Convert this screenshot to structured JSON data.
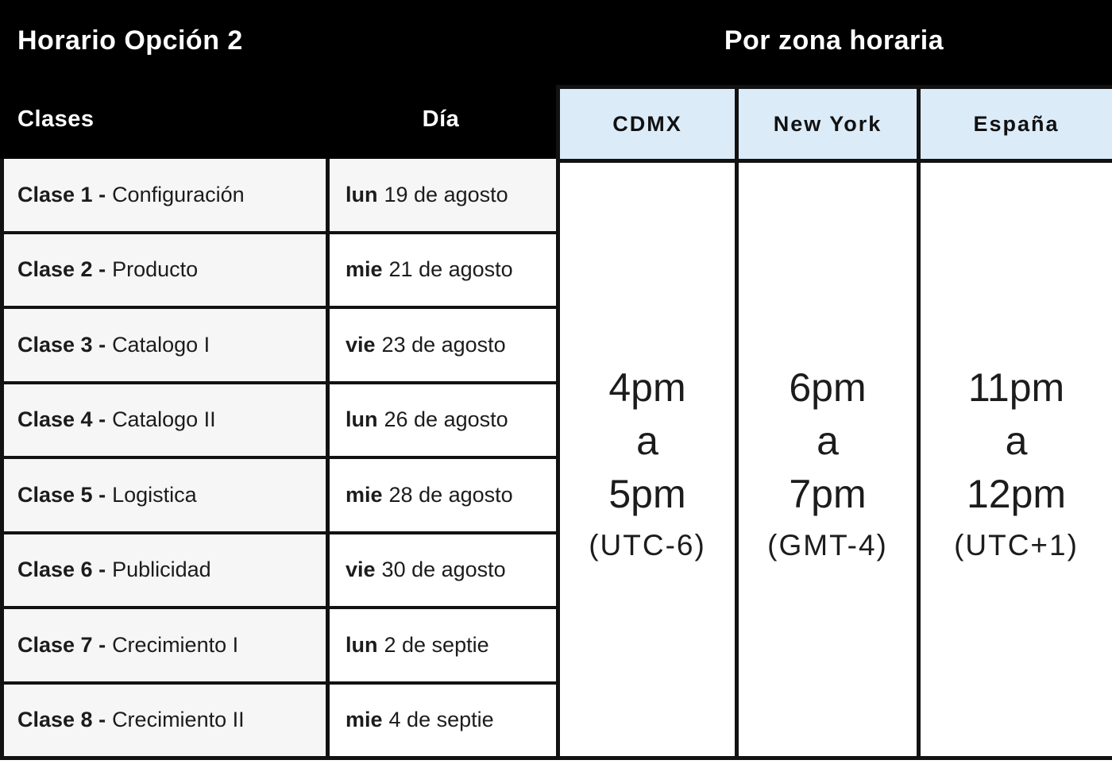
{
  "header": {
    "left_title": "Horario Opción 2",
    "right_title": "Por zona horaria",
    "col_clases": "Clases",
    "col_dia": "Día"
  },
  "rows": [
    {
      "clase": "Clase 1 -",
      "nombre": "Configuración",
      "dia": "lun",
      "fecha": "19 de agosto"
    },
    {
      "clase": "Clase 2 -",
      "nombre": "Producto",
      "dia": "mie",
      "fecha": "21 de agosto"
    },
    {
      "clase": "Clase 3 -",
      "nombre": "Catalogo I",
      "dia": "vie",
      "fecha": "23 de agosto"
    },
    {
      "clase": "Clase 4 -",
      "nombre": "Catalogo II",
      "dia": "lun",
      "fecha": "26 de agosto"
    },
    {
      "clase": "Clase 5 -",
      "nombre": "Logistica",
      "dia": "mie",
      "fecha": "28 de agosto"
    },
    {
      "clase": "Clase 6 -",
      "nombre": "Publicidad",
      "dia": "vie",
      "fecha": "30 de agosto"
    },
    {
      "clase": "Clase 7  -",
      "nombre": "Crecimiento I",
      "dia": "lun",
      "fecha": "2 de septie"
    },
    {
      "clase": "Clase 8 -",
      "nombre": "Crecimiento II",
      "dia": "mie",
      "fecha": "4 de septie"
    }
  ],
  "timezones": [
    {
      "city": "CDMX",
      "start": "4pm",
      "connector": "a",
      "end": "5pm",
      "offset": "(UTC-6)"
    },
    {
      "city": "New York",
      "start": "6pm",
      "connector": "a",
      "end": "7pm",
      "offset": "(GMT-4)"
    },
    {
      "city": "España",
      "start": "11pm",
      "connector": "a",
      "end": "12pm",
      "offset": "(UTC+1)"
    }
  ],
  "colors": {
    "header_bg": "#000000",
    "header_text": "#ffffff",
    "tz_header_bg": "#dcebf8",
    "row_shaded_bg": "#f6f6f6",
    "border": "#121212",
    "body_text": "#1c1c1c"
  }
}
